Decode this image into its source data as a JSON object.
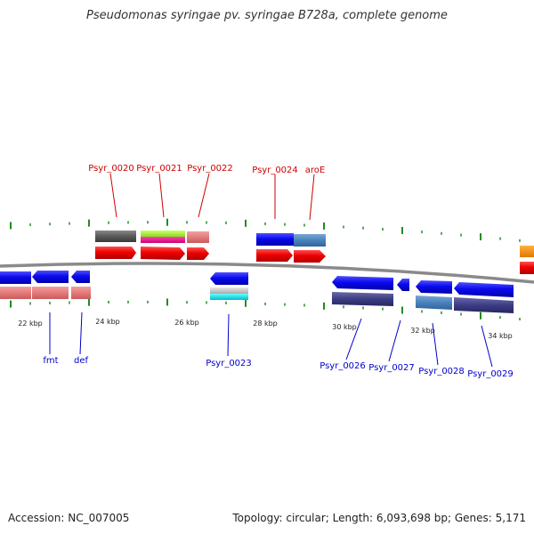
{
  "title": "Pseudomonas syringae pv. syringae B728a, complete genome",
  "footer": {
    "accession": "Accession: NC_007005",
    "summary": "Topology: circular; Length: 6,093,698 bp; Genes: 5,171"
  },
  "scale_labels": [
    "22 kbp",
    "24 kbp",
    "26 kbp",
    "28 kbp",
    "30 kbp",
    "32 kbp",
    "34 kbp"
  ],
  "genes_top": [
    {
      "name": "Psyr_0020",
      "color": "#cc0000"
    },
    {
      "name": "Psyr_0021",
      "color": "#cc0000"
    },
    {
      "name": "Psyr_0022",
      "color": "#cc0000"
    },
    {
      "name": "Psyr_0024",
      "color": "#cc0000"
    },
    {
      "name": "aroE",
      "color": "#cc0000"
    }
  ],
  "genes_bottom": [
    {
      "name": "fmt",
      "color": "#0000cc"
    },
    {
      "name": "def",
      "color": "#0000cc"
    },
    {
      "name": "Psyr_0023",
      "color": "#0000cc"
    },
    {
      "name": "Psyr_0026",
      "color": "#0000cc"
    },
    {
      "name": "Psyr_0027",
      "color": "#0000cc"
    },
    {
      "name": "Psyr_0028",
      "color": "#0000cc"
    },
    {
      "name": "Psyr_0029",
      "color": "#0000cc"
    }
  ],
  "colors": {
    "backbone": "#888888",
    "tick": "#228b22",
    "forward_cds": "#ee0000",
    "reverse_cds": "#0a0aee"
  }
}
